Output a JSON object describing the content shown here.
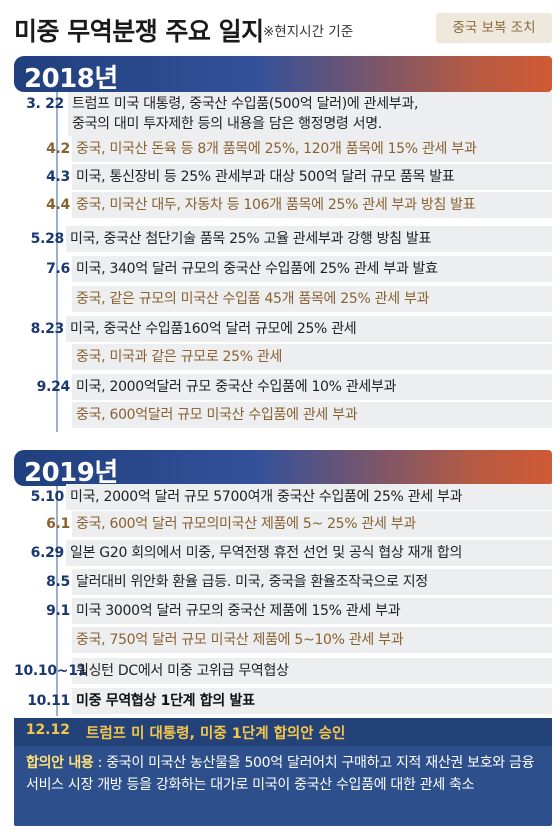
{
  "header": {
    "title": "미중 무역분쟁 주요 일지",
    "note": "※현지시간 기준",
    "legend_label": "중국 보복 조치"
  },
  "colors": {
    "us_text": "#222222",
    "china_text": "#8a6231",
    "date_text": "#1a3870",
    "banner_start": "#1f3f7d",
    "banner_end": "#d05a35",
    "agreement_bg": "#2d4f8c",
    "agreement_headline": "#f5c64a"
  },
  "section_2018": {
    "year": "2018년",
    "events": [
      {
        "date": "3. 22",
        "line1": "트럼프 미국 대통령, 중국산 수입품(500억 달러)에 관세부과,",
        "line2": "중국의 대미 투자제한 등의 내용을 담은 행정명령 서명.",
        "side": "us"
      },
      {
        "date": "4.2",
        "text": "중국, 미국산 돈육 등 8개 품목에 25%, 120개 품목에 15% 관세 부과",
        "side": "china"
      },
      {
        "date": "4.3",
        "text": "미국, 통신장비 등 25% 관세부과 대상 500억 달러 규모 품목 발표",
        "side": "us"
      },
      {
        "date": "4.4",
        "text": "중국, 미국산 대두, 자동차 등 106개 품목에 25% 관세 부과 방침 발표",
        "side": "china"
      },
      {
        "date": "5.28",
        "text": "미국, 중국산 첨단기술 품목 25% 고율 관세부과 강행 방침 발표",
        "side": "us"
      },
      {
        "date": "7.6",
        "text": "미국, 340억 달러 규모의 중국산 수입품에 25% 관세 부과 발효",
        "side": "us"
      },
      {
        "date": "",
        "text": "중국, 같은 규모의 미국산 수입품 45개 품목에 25% 관세 부과",
        "side": "china"
      },
      {
        "date": "8.23",
        "text": "미국, 중국산 수입품160억 달러 규모에 25% 관세",
        "side": "us"
      },
      {
        "date": "",
        "text": "중국, 미국과 같은 규모로 25% 관세",
        "side": "china"
      },
      {
        "date": "9.24",
        "text": "미국, 2000억달러 규모 중국산 수입품에 10% 관세부과",
        "side": "us"
      },
      {
        "date": "",
        "text": "중국, 600억달러 규모 미국산 수입품에 관세 부과",
        "side": "china"
      }
    ]
  },
  "section_2019": {
    "year": "2019년",
    "events": [
      {
        "date": "5.10",
        "text": "미국, 2000억 달러 규모 5700여개 중국산 수입품에 25% 관세 부과",
        "side": "us"
      },
      {
        "date": "6.1",
        "text": "중국, 600억 달러 규모의미국산 제품에 5~ 25% 관세 부과",
        "side": "china"
      },
      {
        "date": "6.29",
        "text": "일본 G20 회의에서 미중, 무역전쟁 휴전 선언 및 공식 협상 재개 합의",
        "side": "us"
      },
      {
        "date": "8.5",
        "text": "달러대비 위안화 환율 급등. 미국, 중국을 환율조작국으로 지정",
        "side": "us"
      },
      {
        "date": "9.1",
        "text": "미국 3000억 달러 규모의 중국산 제품에 15% 관세 부과",
        "side": "us"
      },
      {
        "date": "",
        "text": "중국, 750억 달러 규모 미국산 제품에 5~10% 관세 부과",
        "side": "china"
      },
      {
        "date": "10.10~11",
        "text": "워싱턴 DC에서 미중 고위급 무역협상",
        "side": "us"
      },
      {
        "date": "10.11",
        "text": "미중 무역협상 1단계 합의 발표",
        "side": "us"
      }
    ]
  },
  "agreement": {
    "date": "12.12",
    "headline": "트럼프 미 대통령, 미중 1단계 합의안 승인",
    "label": "합의안 내용",
    "body": " : 중국이 미국산 농산물을 500억 달러어치 구매하고 지적 재산권 보호와 금융 서비스 시장 개방 등을 강화하는 대가로 미국이 중국산 수입품에 대한 관세 축소"
  }
}
